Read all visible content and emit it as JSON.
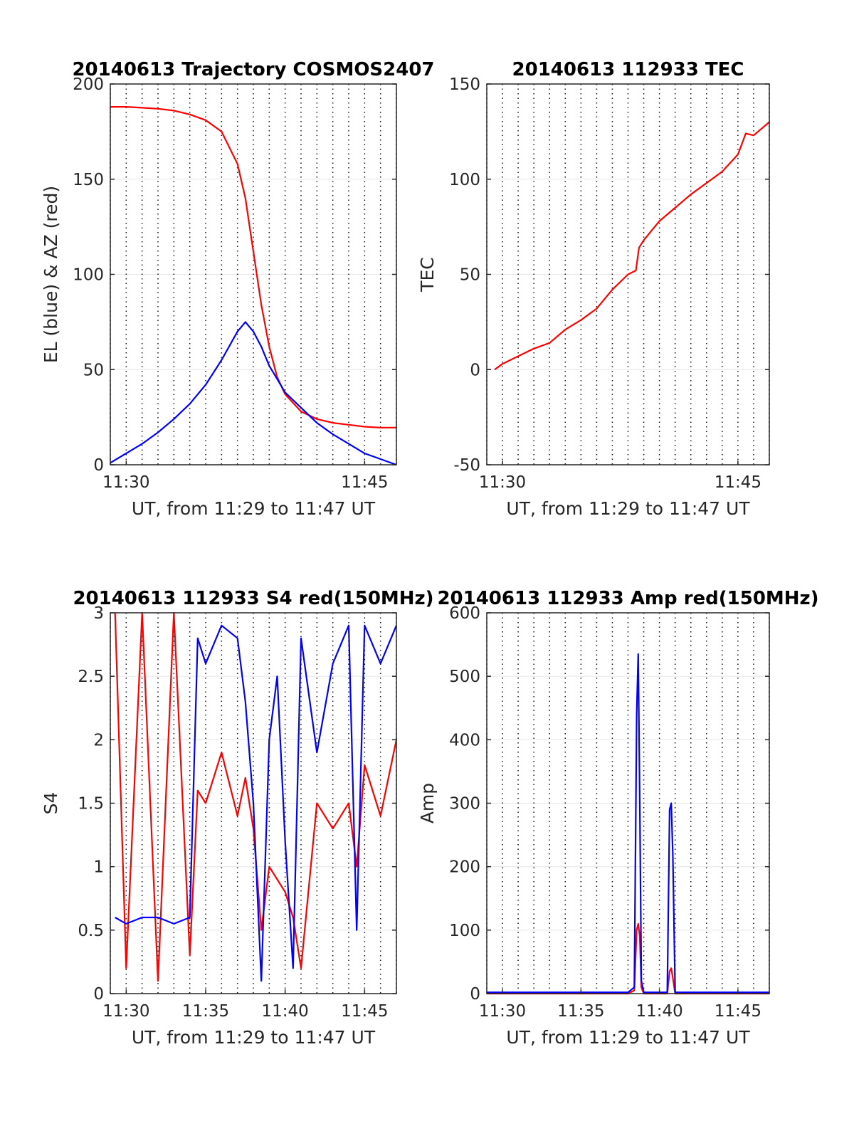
{
  "chart_data": [
    {
      "type": "line",
      "title": "20140613 Trajectory COSMOS2407",
      "xlabel": "UT, from 11:29 to 11:47 UT",
      "ylabel": "EL (blue) & AZ (red)",
      "xlim": [
        "11:29",
        "11:47"
      ],
      "ylim": [
        0,
        200
      ],
      "xticks": [
        "11:30",
        "11:45"
      ],
      "yticks": [
        0,
        50,
        100,
        150,
        200
      ],
      "grid": "dotted vertical every 1 min, light horizontal at y ticks",
      "x": [
        "11:29",
        "11:30",
        "11:31",
        "11:32",
        "11:33",
        "11:34",
        "11:35",
        "11:36",
        "11:37",
        "11:37.5",
        "11:38",
        "11:38.5",
        "11:39",
        "11:39.5",
        "11:40",
        "11:41",
        "11:42",
        "11:43",
        "11:44",
        "11:45",
        "11:46",
        "11:47"
      ],
      "series": [
        {
          "color": "#ff0000",
          "values": [
            188,
            188,
            187.5,
            187,
            186,
            184,
            181,
            175,
            158,
            140,
            112,
            84,
            62,
            46,
            37,
            28,
            24,
            22,
            21,
            20,
            19.5,
            19.5
          ]
        },
        {
          "color": "#0000ff",
          "values": [
            1,
            6,
            11,
            17,
            24,
            32,
            42,
            55,
            70,
            75,
            70,
            62,
            52,
            45,
            38,
            30,
            22,
            16,
            11,
            6,
            3,
            0
          ]
        }
      ]
    },
    {
      "type": "line",
      "title": "20140613 112933 TEC",
      "xlabel": "UT, from 11:29 to 11:47 UT",
      "ylabel": "TEC",
      "xlim": [
        "11:29",
        "11:47"
      ],
      "ylim": [
        -50,
        150
      ],
      "xticks": [
        "11:30",
        "11:45"
      ],
      "yticks": [
        -50,
        0,
        50,
        100,
        150
      ],
      "grid": "dotted vertical every 1 min, light horizontal at y ticks",
      "x": [
        "11:29.5",
        "11:30",
        "11:31",
        "11:32",
        "11:33",
        "11:34",
        "11:35",
        "11:36",
        "11:37",
        "11:38",
        "11:38.5",
        "11:38.7",
        "11:39",
        "11:40",
        "11:41",
        "11:42",
        "11:43",
        "11:44",
        "11:45",
        "11:45.5",
        "11:46",
        "11:47"
      ],
      "series": [
        {
          "color": "#ff0000",
          "values": [
            0,
            3,
            7,
            11,
            14,
            21,
            26,
            32,
            42,
            50,
            52,
            64,
            68,
            78,
            85,
            92,
            98,
            104,
            113,
            124,
            123,
            130
          ]
        }
      ]
    },
    {
      "type": "line",
      "title": "20140613 112933 S4 red(150MHz)",
      "xlabel": "UT, from 11:29 to 11:47 UT",
      "ylabel": "S4",
      "xlim": [
        "11:29",
        "11:47"
      ],
      "ylim": [
        0,
        3
      ],
      "xticks": [
        "11:30",
        "11:35",
        "11:40",
        "11:45"
      ],
      "yticks": [
        0,
        0.5,
        1,
        1.5,
        2,
        2.5,
        3
      ],
      "grid": "dotted vertical every 1 min, light horizontal at y ticks",
      "x": [
        "11:29.3",
        "11:30",
        "11:31",
        "11:32",
        "11:33",
        "11:34",
        "11:34.5",
        "11:35",
        "11:36",
        "11:37",
        "11:37.5",
        "11:38",
        "11:38.5",
        "11:39",
        "11:39.5",
        "11:40",
        "11:40.5",
        "11:41",
        "11:42",
        "11:43",
        "11:44",
        "11:44.5",
        "11:45",
        "11:46",
        "11:47"
      ],
      "series": [
        {
          "color": "#ff0000",
          "values": [
            3,
            0.2,
            3,
            0.1,
            3,
            0.3,
            1.6,
            1.5,
            1.9,
            1.4,
            1.7,
            1.3,
            0.5,
            1.0,
            0.9,
            0.8,
            0.6,
            0.2,
            1.5,
            1.3,
            1.5,
            1.0,
            1.8,
            1.4,
            2.0
          ]
        },
        {
          "color": "#0000ff",
          "values": [
            0.6,
            0.55,
            0.6,
            0.6,
            0.55,
            0.6,
            2.8,
            2.6,
            2.9,
            2.8,
            2.3,
            1.5,
            0.1,
            2.0,
            2.5,
            1.2,
            0.2,
            2.8,
            1.9,
            2.6,
            2.9,
            0.5,
            2.9,
            2.6,
            2.9
          ]
        }
      ]
    },
    {
      "type": "line",
      "title": "20140613 112933 Amp red(150MHz)",
      "xlabel": "UT, from 11:29 to 11:47 UT",
      "ylabel": "Amp",
      "xlim": [
        "11:29",
        "11:47"
      ],
      "ylim": [
        0,
        600
      ],
      "xticks": [
        "11:30",
        "11:35",
        "11:40",
        "11:45"
      ],
      "yticks": [
        0,
        100,
        200,
        300,
        400,
        500,
        600
      ],
      "grid": "dotted vertical every 1 min, light horizontal at y ticks",
      "x": [
        "11:29",
        "11:38",
        "11:38.4",
        "11:38.55",
        "11:38.65",
        "11:38.75",
        "11:38.85",
        "11:39",
        "11:40.5",
        "11:40.65",
        "11:40.75",
        "11:40.85",
        "11:41",
        "11:47"
      ],
      "series": [
        {
          "color": "#ff0000",
          "values": [
            0,
            0,
            5,
            100,
            110,
            90,
            10,
            0,
            0,
            35,
            40,
            25,
            0,
            0
          ]
        },
        {
          "color": "#0000ff",
          "values": [
            2,
            2,
            10,
            440,
            535,
            300,
            20,
            2,
            2,
            290,
            300,
            220,
            2,
            2
          ]
        }
      ]
    }
  ]
}
